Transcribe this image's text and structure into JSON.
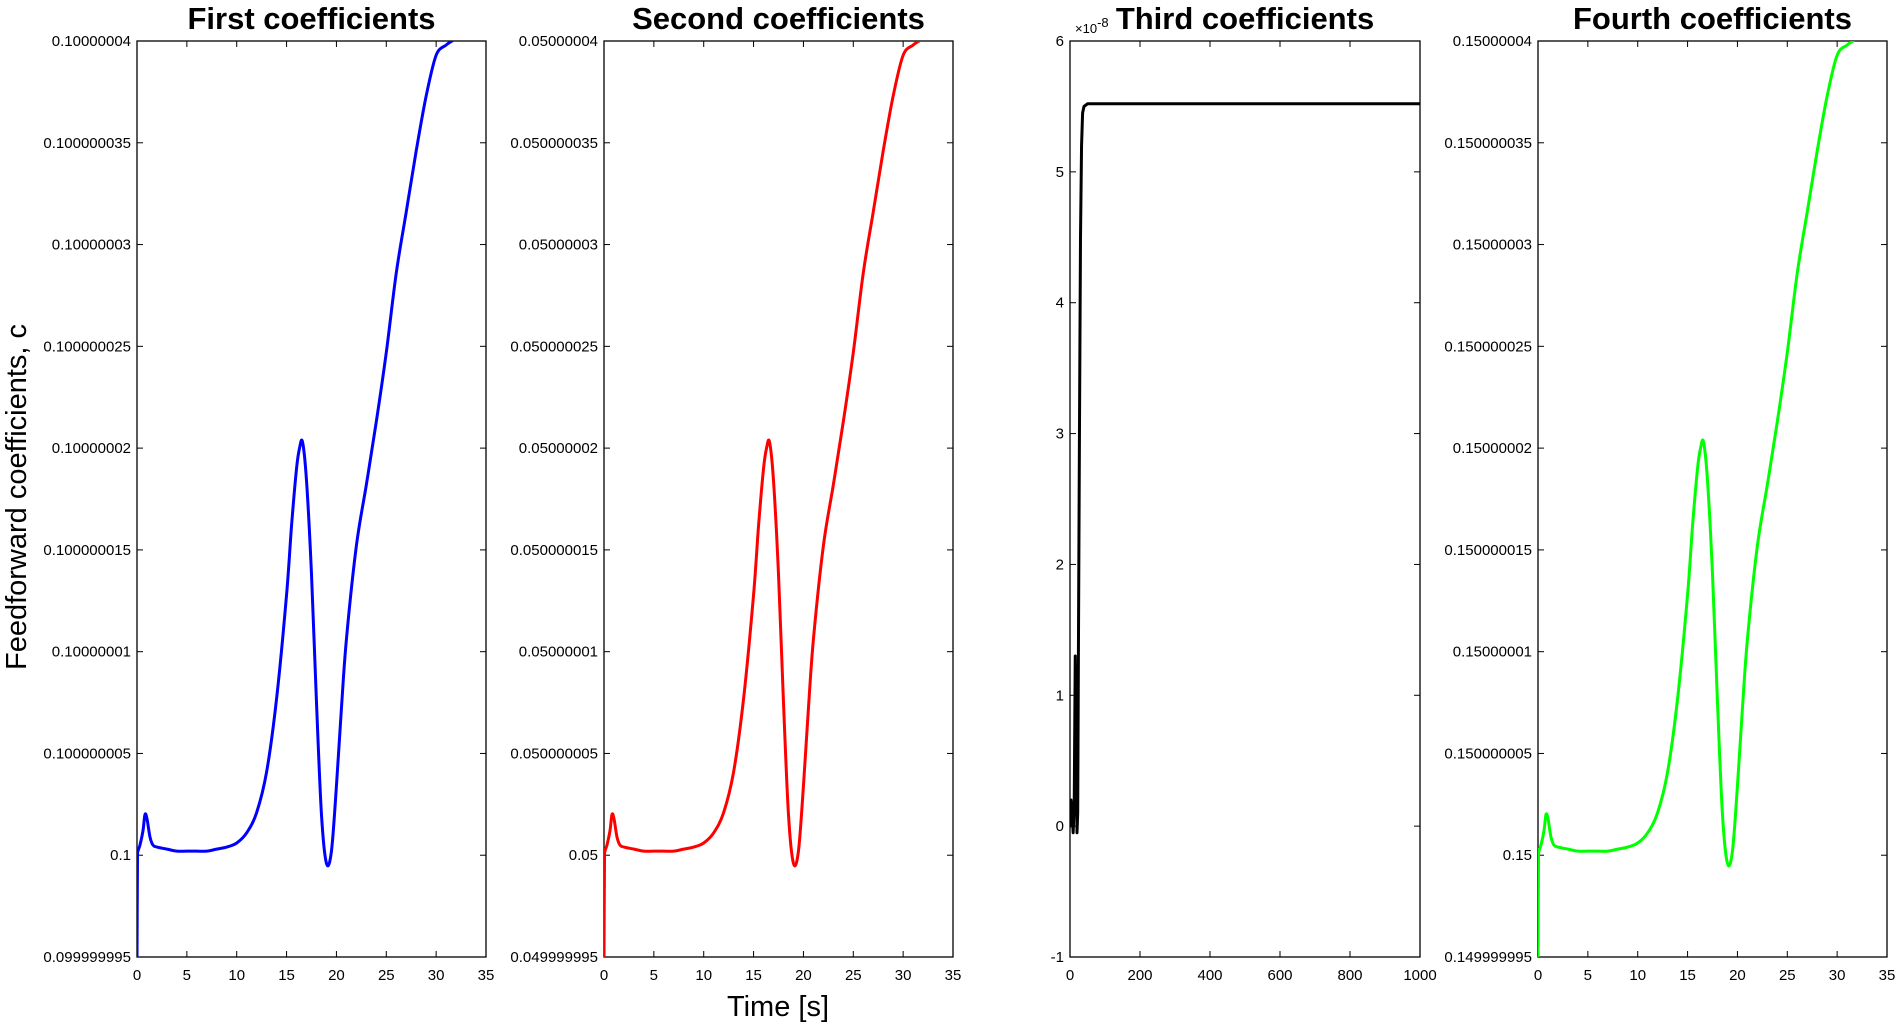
{
  "figure": {
    "ylabel": "Feedforward coefficients, c",
    "xlabel": "Time [s]"
  },
  "chart_data": [
    {
      "type": "line",
      "title": "First coefficients",
      "color": "#0000ff",
      "xlim": [
        0,
        35
      ],
      "ylim": [
        0.099999995,
        0.10000004
      ],
      "xticks": [
        "0",
        "5",
        "10",
        "15",
        "20",
        "25",
        "30",
        "35"
      ],
      "yticks": [
        "0.099999995",
        "0.1",
        "0.100000005",
        "0.10000001",
        "0.100000015",
        "0.10000002",
        "0.100000025",
        "0.10000003",
        "0.100000035",
        "0.10000004"
      ],
      "series": [
        {
          "x": [
            0,
            0.05,
            0.1,
            0.3,
            0.6,
            0.8,
            1.0,
            1.3,
            1.6,
            2.0,
            3,
            4,
            5,
            6,
            7,
            8,
            9,
            10,
            11,
            12,
            13,
            14,
            15,
            15.5,
            16,
            16.3,
            16.6,
            17,
            17.5,
            18,
            18.5,
            19,
            19.5,
            20,
            20.5,
            21,
            22,
            23,
            24,
            25,
            26,
            27,
            28,
            29,
            30,
            31,
            31.6
          ],
          "y": [
            0.099999995,
            0.0999999998,
            0.1000000002,
            0.1000000005,
            0.1000000012,
            0.100000002,
            0.1000000018,
            0.1000000009,
            0.1000000005,
            0.1000000004,
            0.1000000003,
            0.1000000002,
            0.1000000002,
            0.1000000002,
            0.1000000002,
            0.1000000003,
            0.1000000004,
            0.1000000006,
            0.1000000011,
            0.1000000021,
            0.1000000041,
            0.1000000077,
            0.1000000128,
            0.1000000162,
            0.100000019,
            0.10000002,
            0.1000000203,
            0.1000000184,
            0.1000000138,
            0.1000000075,
            0.100000002,
            0.0999999996,
            0.1000000002,
            0.1000000034,
            0.1000000072,
            0.1000000106,
            0.1000000152,
            0.1000000182,
            0.1000000213,
            0.1000000247,
            0.1000000286,
            0.1000000316,
            0.1000000346,
            0.1000000373,
            0.1000000393,
            0.1000000398,
            0.10000004
          ]
        }
      ]
    },
    {
      "type": "line",
      "title": "Second coefficients",
      "color": "#ff0000",
      "xlim": [
        0,
        35
      ],
      "ylim": [
        0.049999995,
        0.05000004
      ],
      "xticks": [
        "0",
        "5",
        "10",
        "15",
        "20",
        "25",
        "30",
        "35"
      ],
      "yticks": [
        "0.049999995",
        "0.05",
        "0.050000005",
        "0.05000001",
        "0.050000015",
        "0.05000002",
        "0.050000025",
        "0.05000003",
        "0.050000035",
        "0.05000004"
      ],
      "series": [
        {
          "x": [
            0,
            0.05,
            0.1,
            0.3,
            0.6,
            0.8,
            1.0,
            1.3,
            1.6,
            2.0,
            3,
            4,
            5,
            6,
            7,
            8,
            9,
            10,
            11,
            12,
            13,
            14,
            15,
            15.5,
            16,
            16.3,
            16.6,
            17,
            17.5,
            18,
            18.5,
            19,
            19.5,
            20,
            20.5,
            21,
            22,
            23,
            24,
            25,
            26,
            27,
            28,
            29,
            30,
            31,
            31.6
          ],
          "y": [
            0.049999995,
            0.0499999998,
            0.0500000002,
            0.0500000005,
            0.0500000012,
            0.050000002,
            0.0500000018,
            0.0500000009,
            0.0500000005,
            0.0500000004,
            0.0500000003,
            0.0500000002,
            0.0500000002,
            0.0500000002,
            0.0500000002,
            0.0500000003,
            0.0500000004,
            0.0500000006,
            0.0500000011,
            0.0500000021,
            0.0500000041,
            0.0500000077,
            0.0500000128,
            0.0500000162,
            0.050000019,
            0.05000002,
            0.0500000203,
            0.0500000184,
            0.0500000138,
            0.0500000075,
            0.050000002,
            0.0499999996,
            0.0500000002,
            0.0500000034,
            0.0500000072,
            0.0500000106,
            0.0500000152,
            0.0500000182,
            0.0500000213,
            0.0500000247,
            0.0500000286,
            0.0500000316,
            0.0500000346,
            0.0500000373,
            0.0500000393,
            0.0500000398,
            0.05000004
          ]
        }
      ]
    },
    {
      "type": "line",
      "title": "Third coefficients",
      "color": "#000000",
      "xlim": [
        0,
        1000
      ],
      "ylim": [
        -1,
        6
      ],
      "exponent": "×10",
      "exponent_power": "-8",
      "xticks": [
        "0",
        "200",
        "400",
        "600",
        "800",
        "1000"
      ],
      "yticks": [
        "-1",
        "0",
        "1",
        "2",
        "3",
        "4",
        "5",
        "6"
      ],
      "series": [
        {
          "x": [
            0,
            3,
            6,
            9,
            12,
            15,
            18,
            20,
            22,
            24,
            27,
            30,
            33,
            36,
            40,
            45,
            50,
            60,
            80,
            1000
          ],
          "y": [
            0,
            0.2,
            0.1,
            -0.05,
            0.15,
            1.3,
            0.5,
            -0.05,
            0.1,
            1.3,
            3.0,
            4.5,
            5.2,
            5.45,
            5.5,
            5.51,
            5.52,
            5.52,
            5.52,
            5.52
          ]
        }
      ]
    },
    {
      "type": "line",
      "title": "Fourth coefficients",
      "color": "#00ff00",
      "xlim": [
        0,
        35
      ],
      "ylim": [
        0.149999995,
        0.15000004
      ],
      "xticks": [
        "0",
        "5",
        "10",
        "15",
        "20",
        "25",
        "30",
        "35"
      ],
      "yticks": [
        "0.149999995",
        "0.15",
        "0.150000005",
        "0.15000001",
        "0.150000015",
        "0.15000002",
        "0.150000025",
        "0.15000003",
        "0.150000035",
        "0.15000004"
      ],
      "series": [
        {
          "x": [
            0,
            0.05,
            0.1,
            0.3,
            0.6,
            0.8,
            1.0,
            1.3,
            1.6,
            2.0,
            3,
            4,
            5,
            6,
            7,
            8,
            9,
            10,
            11,
            12,
            13,
            14,
            15,
            15.5,
            16,
            16.3,
            16.6,
            17,
            17.5,
            18,
            18.5,
            19,
            19.5,
            20,
            20.5,
            21,
            22,
            23,
            24,
            25,
            26,
            27,
            28,
            29,
            30,
            31,
            31.6
          ],
          "y": [
            0.149999995,
            0.1499999998,
            0.1500000002,
            0.1500000005,
            0.1500000012,
            0.150000002,
            0.1500000018,
            0.1500000009,
            0.1500000005,
            0.1500000004,
            0.1500000003,
            0.1500000002,
            0.1500000002,
            0.1500000002,
            0.1500000002,
            0.1500000003,
            0.1500000004,
            0.1500000006,
            0.1500000011,
            0.1500000021,
            0.1500000041,
            0.1500000077,
            0.1500000128,
            0.1500000162,
            0.150000019,
            0.15000002,
            0.1500000203,
            0.1500000184,
            0.1500000138,
            0.1500000075,
            0.150000002,
            0.1499999996,
            0.1500000002,
            0.1500000034,
            0.1500000072,
            0.1500000106,
            0.1500000152,
            0.1500000182,
            0.1500000213,
            0.1500000247,
            0.1500000286,
            0.1500000316,
            0.1500000346,
            0.1500000373,
            0.1500000393,
            0.1500000398,
            0.15000004
          ]
        }
      ]
    }
  ]
}
